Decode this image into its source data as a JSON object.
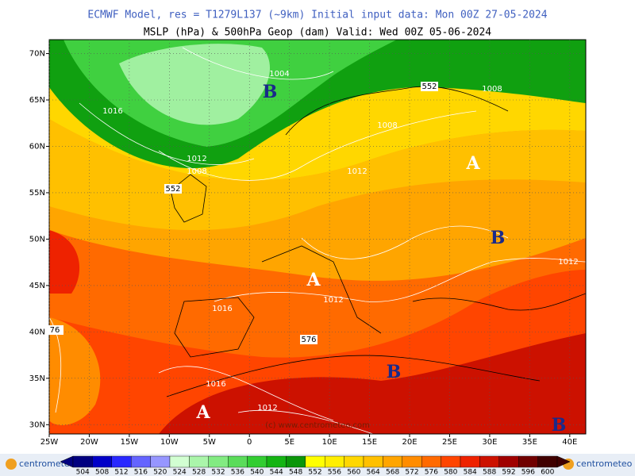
{
  "header": {
    "title": "ECMWF Model, res = T1279L137 (~9km)   Initial input data: Mon 00Z 27-05-2024",
    "subtitle": "MSLP (hPa) & 500hPa Geop (dam)  Valid: Wed 00Z 05-06-2024"
  },
  "map": {
    "xlim": [
      -25,
      42
    ],
    "ylim": [
      29,
      71.5
    ],
    "xticks": [
      {
        "value": -25,
        "label": "25W"
      },
      {
        "value": -20,
        "label": "20W"
      },
      {
        "value": -15,
        "label": "15W"
      },
      {
        "value": -10,
        "label": "10W"
      },
      {
        "value": -5,
        "label": "5W"
      },
      0,
      {
        "value": 5,
        "label": "5E"
      },
      {
        "value": 10,
        "label": "10E"
      },
      {
        "value": 15,
        "label": "15E"
      },
      {
        "value": 20,
        "label": "20E"
      },
      {
        "value": 25,
        "label": "25E"
      },
      {
        "value": 30,
        "label": "30E"
      },
      {
        "value": 35,
        "label": "35E"
      },
      {
        "value": 40,
        "label": "40E"
      }
    ],
    "yticks": [
      {
        "value": 30,
        "label": "30N"
      },
      {
        "value": 35,
        "label": "35N"
      },
      {
        "value": 40,
        "label": "40N"
      },
      {
        "value": 45,
        "label": "45N"
      },
      {
        "value": 50,
        "label": "50N"
      },
      {
        "value": 55,
        "label": "55N"
      },
      {
        "value": 60,
        "label": "60N"
      },
      {
        "value": 65,
        "label": "65N"
      },
      {
        "value": 70,
        "label": "70N"
      }
    ],
    "pressure_centers": [
      "B",
      "A",
      "B",
      "A",
      "B",
      "A",
      "B"
    ],
    "isobar_labels": [
      "1004",
      "1016",
      "1008",
      "1012",
      "1008",
      "1008",
      "1012",
      "1012",
      "1016",
      "1012",
      "1016",
      "1012"
    ],
    "geopotential_labels": [
      "552",
      "552",
      "576",
      "76"
    ],
    "watermark": "(c) www.centrometeo.com"
  },
  "colorbar": {
    "values": [
      504,
      508,
      512,
      516,
      520,
      524,
      528,
      532,
      536,
      540,
      544,
      548,
      552,
      556,
      560,
      564,
      568,
      572,
      576,
      580,
      584,
      588,
      592,
      596,
      600
    ],
    "colors": [
      "#000080",
      "#0000c8",
      "#2828ff",
      "#6464ff",
      "#9696ff",
      "#d2ffd2",
      "#aaf5aa",
      "#82eb82",
      "#5adc5a",
      "#32cd32",
      "#14b414",
      "#0a960a",
      "#ffff00",
      "#ffee00",
      "#ffd700",
      "#ffc000",
      "#ffa500",
      "#ff8c00",
      "#ff6a00",
      "#ff4500",
      "#ee2200",
      "#cc1100",
      "#a00000",
      "#700000",
      "#400000"
    ]
  },
  "footer": {
    "logo": "centrometeo"
  }
}
